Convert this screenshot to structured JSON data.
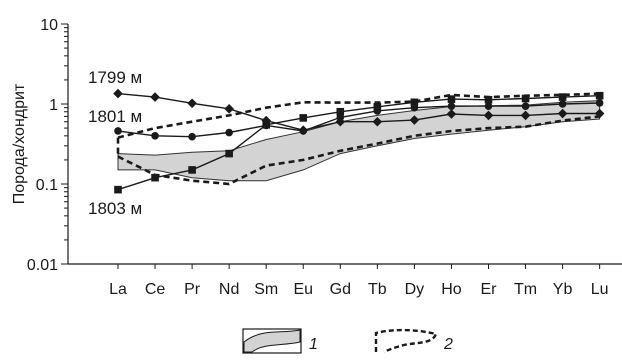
{
  "chart_data": {
    "type": "line",
    "title": "",
    "xlabel": "",
    "ylabel": "Порода/хондрит",
    "yscale": "log",
    "ylim": [
      0.01,
      10
    ],
    "yticks": [
      {
        "value": 0.01,
        "label": "0.01"
      },
      {
        "value": 0.1,
        "label": "0.1"
      },
      {
        "value": 1,
        "label": "1"
      },
      {
        "value": 10,
        "label": "10"
      }
    ],
    "categories": [
      "La",
      "Ce",
      "Pr",
      "Nd",
      "Sm",
      "Eu",
      "Gd",
      "Tb",
      "Dy",
      "Ho",
      "Er",
      "Tm",
      "Yb",
      "Lu"
    ],
    "series": [
      {
        "name": "1799 м",
        "marker": "diamond",
        "values": [
          1.35,
          1.22,
          1.02,
          0.87,
          0.62,
          0.47,
          0.6,
          0.6,
          0.63,
          0.75,
          0.72,
          0.72,
          0.76,
          0.76
        ]
      },
      {
        "name": "1801 м",
        "marker": "circle",
        "values": [
          0.46,
          0.4,
          0.39,
          0.44,
          0.54,
          0.46,
          0.68,
          0.82,
          0.9,
          0.94,
          0.94,
          0.94,
          1.0,
          1.03
        ]
      },
      {
        "name": "1803 м",
        "marker": "square",
        "values": [
          0.085,
          0.12,
          0.15,
          0.24,
          0.55,
          0.67,
          0.8,
          0.92,
          1.05,
          1.15,
          1.13,
          1.17,
          1.22,
          1.27
        ]
      }
    ],
    "shaded_band": {
      "legend_label": "1",
      "upper": [
        0.24,
        0.23,
        0.25,
        0.26,
        0.36,
        0.45,
        0.6,
        0.72,
        0.83,
        0.93,
        0.95,
        0.97,
        1.05,
        1.1
      ],
      "lower": [
        0.15,
        0.15,
        0.12,
        0.11,
        0.11,
        0.15,
        0.24,
        0.3,
        0.37,
        0.42,
        0.47,
        0.52,
        0.6,
        0.65
      ]
    },
    "dashed_envelope": {
      "legend_label": "2",
      "upper": [
        0.38,
        0.5,
        0.6,
        0.72,
        0.9,
        1.05,
        1.04,
        1.04,
        1.07,
        1.3,
        1.22,
        1.27,
        1.3,
        1.35
      ],
      "lower": [
        0.22,
        0.13,
        0.11,
        0.1,
        0.17,
        0.2,
        0.26,
        0.32,
        0.4,
        0.46,
        0.5,
        0.52,
        0.62,
        0.7
      ]
    },
    "grid": false,
    "legend_position": "bottom-center"
  }
}
